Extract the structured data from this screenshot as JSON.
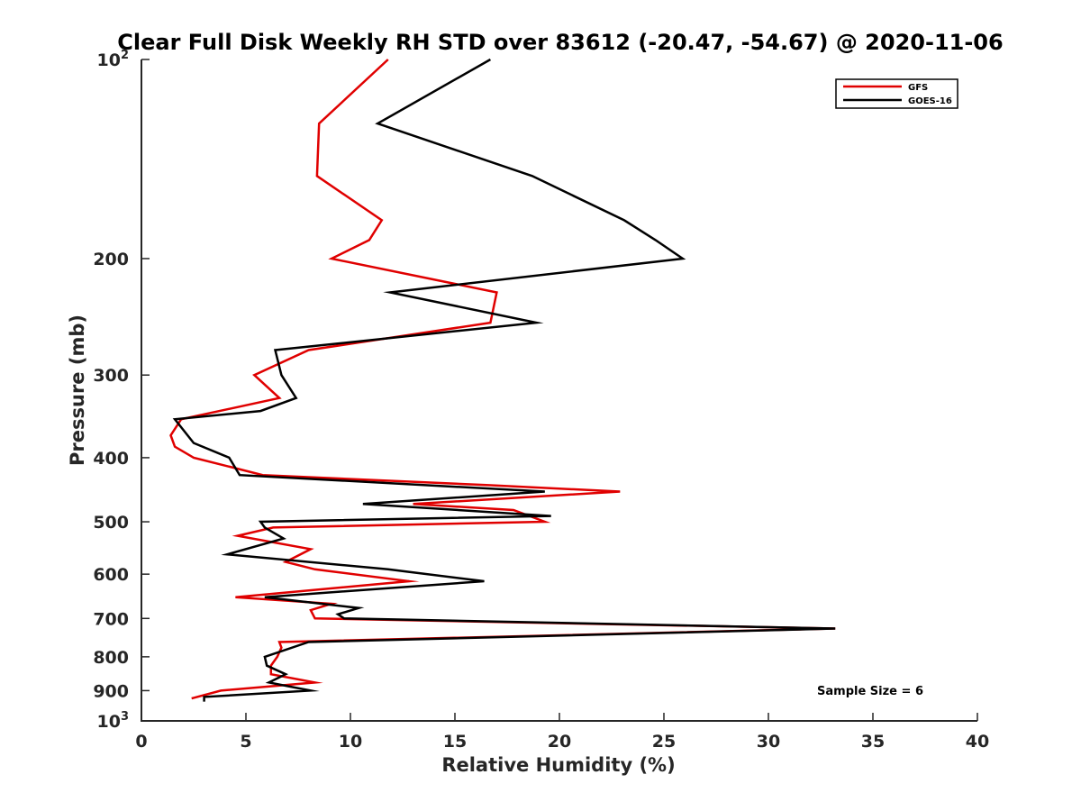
{
  "chart_data": {
    "type": "line",
    "title": "Clear Full Disk Weekly RH STD over 83612 (-20.47, -54.67) @ 2020-11-06",
    "xlabel": "Relative Humidity (%)",
    "ylabel": "Pressure (mb)",
    "xlim": [
      0,
      40
    ],
    "ylim": [
      100,
      1000
    ],
    "y_scale": "log",
    "y_reversed": true,
    "grid": false,
    "legend_position": "top-right",
    "x_ticks": [
      "0",
      "5",
      "10",
      "15",
      "20",
      "25",
      "30",
      "35",
      "40"
    ],
    "y_ticks": [
      {
        "value": 100,
        "base": "10",
        "exp": "2"
      },
      {
        "value": 200,
        "label": "200"
      },
      {
        "value": 300,
        "label": "300"
      },
      {
        "value": 400,
        "label": "400"
      },
      {
        "value": 500,
        "label": "500"
      },
      {
        "value": 600,
        "label": "600"
      },
      {
        "value": 700,
        "label": "700"
      },
      {
        "value": 800,
        "label": "800"
      },
      {
        "value": 900,
        "label": "900"
      },
      {
        "value": 1000,
        "base": "10",
        "exp": "3"
      }
    ],
    "annotation": "Sample Size = 6",
    "series": [
      {
        "name": "GFS",
        "color": "#e00000",
        "points": [
          [
            11.8,
            100
          ],
          [
            8.5,
            125
          ],
          [
            8.4,
            150
          ],
          [
            11.5,
            175
          ],
          [
            10.9,
            187.5
          ],
          [
            9.1,
            200
          ],
          [
            17.0,
            225
          ],
          [
            16.7,
            250
          ],
          [
            8.0,
            275
          ],
          [
            5.4,
            300
          ],
          [
            6.6,
            325
          ],
          [
            1.9,
            350
          ],
          [
            1.4,
            370
          ],
          [
            1.6,
            385
          ],
          [
            2.5,
            400
          ],
          [
            5.8,
            425
          ],
          [
            16.5,
            440
          ],
          [
            22.9,
            450
          ],
          [
            13.0,
            470
          ],
          [
            17.8,
            480
          ],
          [
            19.3,
            500
          ],
          [
            6.3,
            510
          ],
          [
            4.6,
            525
          ],
          [
            8.1,
            550
          ],
          [
            6.9,
            575
          ],
          [
            8.3,
            590
          ],
          [
            12.8,
            615
          ],
          [
            4.5,
            650
          ],
          [
            9.1,
            665
          ],
          [
            8.1,
            680
          ],
          [
            8.3,
            700
          ],
          [
            33.2,
            725
          ],
          [
            6.6,
            760
          ],
          [
            6.7,
            775
          ],
          [
            6.5,
            800
          ],
          [
            6.2,
            825
          ],
          [
            6.2,
            850
          ],
          [
            8.3,
            875
          ],
          [
            3.8,
            900
          ],
          [
            2.4,
            925
          ]
        ]
      },
      {
        "name": "GOES-16",
        "color": "#000000",
        "points": [
          [
            16.7,
            100
          ],
          [
            11.3,
            125
          ],
          [
            18.7,
            150
          ],
          [
            23.1,
            175
          ],
          [
            24.6,
            187.5
          ],
          [
            25.9,
            200
          ],
          [
            11.9,
            225
          ],
          [
            18.9,
            250
          ],
          [
            6.4,
            275
          ],
          [
            6.7,
            300
          ],
          [
            7.4,
            325
          ],
          [
            5.7,
            340
          ],
          [
            1.6,
            350
          ],
          [
            2.5,
            380
          ],
          [
            4.2,
            400
          ],
          [
            4.7,
            425
          ],
          [
            19.3,
            450
          ],
          [
            10.6,
            470
          ],
          [
            19.6,
            490
          ],
          [
            5.7,
            500
          ],
          [
            5.9,
            510
          ],
          [
            6.8,
            530
          ],
          [
            4.1,
            560
          ],
          [
            11.8,
            590
          ],
          [
            16.4,
            615
          ],
          [
            5.9,
            650
          ],
          [
            10.4,
            675
          ],
          [
            9.4,
            690
          ],
          [
            9.7,
            700
          ],
          [
            33.2,
            725
          ],
          [
            8.0,
            760
          ],
          [
            5.9,
            800
          ],
          [
            6.0,
            825
          ],
          [
            6.9,
            850
          ],
          [
            6.1,
            875
          ],
          [
            8.1,
            900
          ],
          [
            3.0,
            920
          ],
          [
            3.0,
            935
          ]
        ]
      }
    ]
  }
}
